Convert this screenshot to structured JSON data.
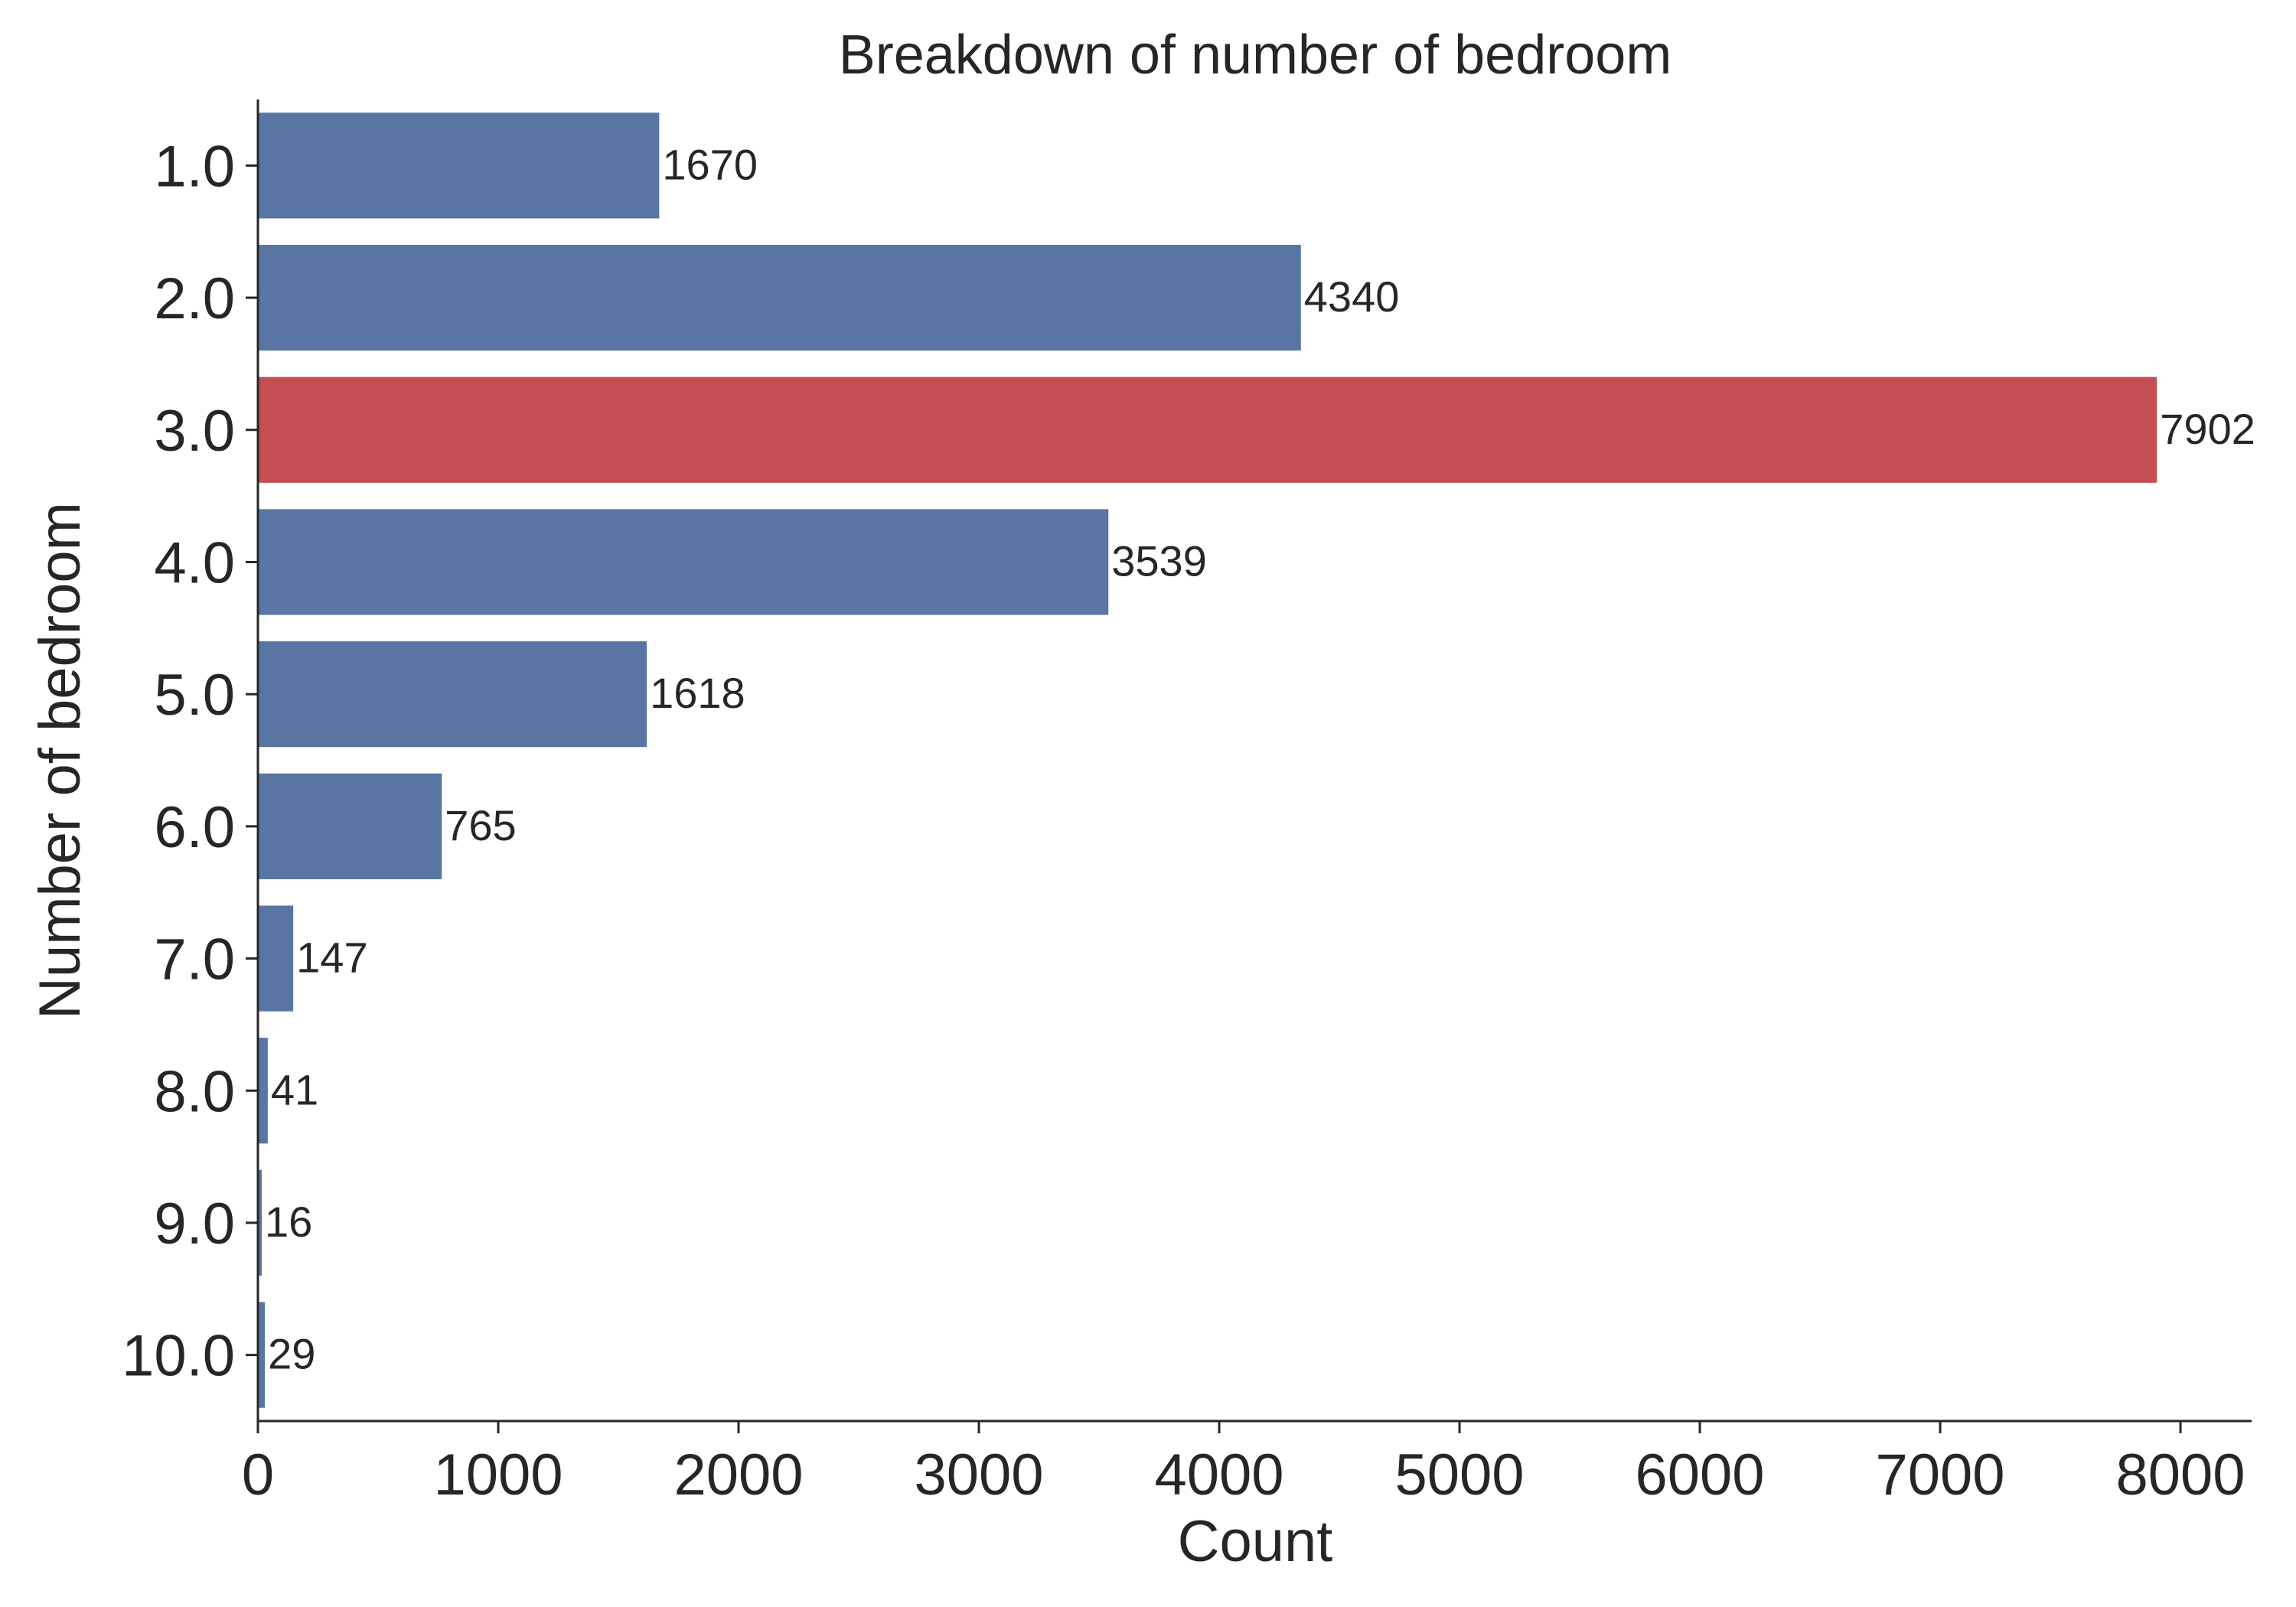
{
  "chart_data": {
    "type": "bar",
    "orientation": "horizontal",
    "title": "Breakdown of number of bedroom",
    "xlabel": "Count",
    "ylabel": "Number of bedroom",
    "categories": [
      "1.0",
      "2.0",
      "3.0",
      "4.0",
      "5.0",
      "6.0",
      "7.0",
      "8.0",
      "9.0",
      "10.0"
    ],
    "values": [
      1670,
      4340,
      7902,
      3539,
      1618,
      765,
      147,
      41,
      16,
      29
    ],
    "xticks": [
      0,
      1000,
      2000,
      3000,
      4000,
      5000,
      6000,
      7000,
      8000
    ],
    "xlim": [
      0,
      8296
    ],
    "grid": false,
    "highlight_index": 2,
    "colors": {
      "bar": "#5875a4",
      "highlight": "#c44e52",
      "text": "#262626"
    }
  }
}
